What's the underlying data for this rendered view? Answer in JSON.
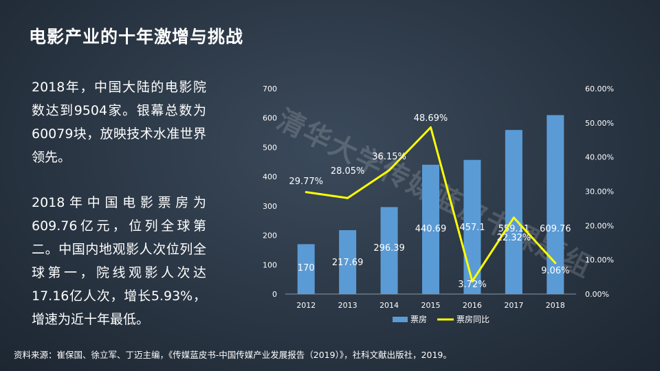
{
  "title": "电影产业的十年激增与挑战",
  "paragraph1": "2018年，中国大陆的电影院数达到9504家。银幕总数为60079块，放映技术水准世界领先。",
  "paragraph2": "2018年中国电影票房为609.76亿元，位列全球第二。中国内地观影人次位列全球第一，院线观影人次达17.16亿人次，增长5.93%，增速为近十年最低。",
  "source": "资料来源：崔保国、徐立军、丁迈主编，《传媒蓝皮书-中国传媒产业发展报告（2019）》，社科文献出版社，2019。",
  "watermark": "清华大学传媒蓝皮书课题组",
  "colors": {
    "bar": "#5b9bd5",
    "line": "#ffff00"
  },
  "chart_data": {
    "type": "bar",
    "categories": [
      "2012",
      "2013",
      "2014",
      "2015",
      "2016",
      "2017",
      "2018"
    ],
    "series": [
      {
        "name": "票房",
        "type": "bar",
        "axis": "left",
        "values": [
          170,
          217.69,
          296.39,
          440.69,
          457.1,
          559.11,
          609.76
        ],
        "labels": [
          "170",
          "217.69",
          "296.39",
          "440.69",
          "457.1",
          "559.11",
          "609.76"
        ]
      },
      {
        "name": "票房同比",
        "type": "line",
        "axis": "right",
        "values": [
          29.77,
          28.05,
          36.15,
          48.69,
          3.72,
          22.32,
          9.06
        ],
        "labels": [
          "29.77%",
          "28.05%",
          "36.15%",
          "48.69%",
          "3.72%",
          "22.32%",
          "9.06%"
        ]
      }
    ],
    "y_left": {
      "min": 0,
      "max": 700,
      "ticks": [
        "0",
        "100",
        "200",
        "300",
        "400",
        "500",
        "600",
        "700"
      ]
    },
    "y_right": {
      "min": 0,
      "max": 60,
      "ticks": [
        "0.00%",
        "10.00%",
        "20.00%",
        "30.00%",
        "40.00%",
        "50.00%",
        "60.00%"
      ]
    },
    "legend_position": "bottom",
    "grid": false
  }
}
